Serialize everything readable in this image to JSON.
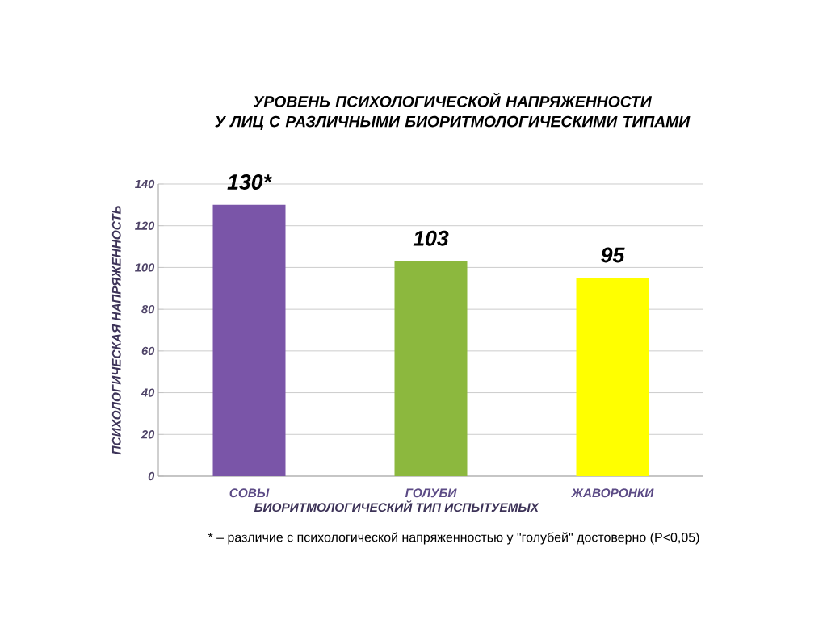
{
  "chart_data": {
    "type": "bar",
    "title": "УРОВЕНЬ ПСИХОЛОГИЧЕСКОЙ НАПРЯЖЕННОСТИ\nУ ЛИЦ С РАЗЛИЧНЫМИ БИОРИТМОЛОГИЧЕСКИМИ ТИПАМИ",
    "xlabel": "БИОРИТМОЛОГИЧЕСКИЙ ТИП ИСПЫТУЕМЫХ",
    "ylabel": "ПСИХОЛОГИЧЕСКАЯ НАПРЯЖЕННОСТЬ",
    "categories": [
      "СОВЫ",
      "ГОЛУБИ",
      "ЖАВОРОНКИ"
    ],
    "values": [
      130,
      103,
      95
    ],
    "colors": [
      "#7a55a8",
      "#8cb83e",
      "#ffff00"
    ],
    "value_labels": [
      "130*",
      "103",
      "95"
    ],
    "ylim": [
      0,
      140
    ],
    "yticks": [
      0,
      20,
      40,
      60,
      80,
      100,
      120,
      140
    ],
    "grid": "y",
    "annotations": [
      "* – различие с психологической напряженностью у \"голубей\" достоверно (P<0,05)"
    ]
  }
}
